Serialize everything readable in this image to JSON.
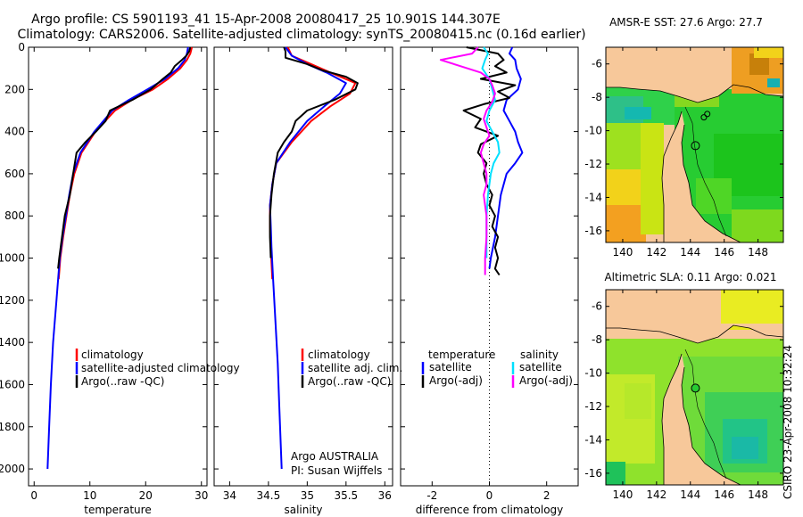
{
  "header": {
    "line1": "Argo profile: CS 5901193_41 15-Apr-2008 20080417_25 10.901S 144.307E",
    "line2": "Climatology: CARS2006. Satellite-adjusted climatology: synTS_20080415.nc (0.16d earlier)"
  },
  "colors": {
    "climatology": "#ff0000",
    "satellite": "#0000ff",
    "argo": "#000000",
    "sal_satellite": "#00e0ff",
    "sal_argo": "#ff00ff",
    "land": "#f7c89a"
  },
  "stamp": "CSIRO 23-Apr-2008 10:32:24",
  "chart_data": [
    {
      "id": "temperature-profile",
      "type": "line",
      "xlabel": "temperature",
      "ylabel": "",
      "xlim": [
        -1,
        31
      ],
      "ylim": [
        0,
        2080
      ],
      "yreversed": true,
      "xticks": [
        0,
        10,
        20,
        30
      ],
      "yticks": [
        0,
        200,
        400,
        600,
        800,
        1000,
        1200,
        1400,
        1600,
        1800,
        2000
      ],
      "legend": [
        "climatology",
        "satellite-adjusted climatology",
        "Argo(..raw -QC)"
      ],
      "series": [
        {
          "name": "climatology",
          "color": "#ff0000",
          "depth": [
            0,
            30,
            60,
            100,
            150,
            200,
            250,
            300,
            400,
            500,
            600,
            700,
            800,
            900,
            1000,
            1100
          ],
          "values": [
            28.3,
            28.0,
            27.4,
            26.2,
            24.0,
            21.3,
            17.5,
            14.5,
            11.0,
            8.5,
            7.2,
            6.4,
            5.8,
            5.2,
            4.7,
            4.4
          ]
        },
        {
          "name": "satellite-adjusted climatology",
          "color": "#0000ff",
          "depth": [
            0,
            30,
            60,
            100,
            150,
            200,
            250,
            300,
            400,
            500,
            600,
            700,
            800,
            900,
            1000,
            1200,
            1400,
            1600,
            1800,
            2000
          ],
          "values": [
            27.6,
            27.4,
            27.0,
            25.8,
            23.5,
            20.3,
            17.0,
            14.0,
            10.8,
            8.3,
            7.0,
            6.3,
            5.7,
            5.1,
            4.6,
            4.0,
            3.4,
            3.0,
            2.7,
            2.4
          ]
        },
        {
          "name": "Argo(..raw -QC)",
          "color": "#000000",
          "depth": [
            0,
            20,
            40,
            60,
            90,
            120,
            150,
            200,
            250,
            300,
            350,
            400,
            450,
            500,
            600,
            700,
            800,
            900,
            1000,
            1050
          ],
          "values": [
            28.0,
            27.8,
            27.3,
            26.5,
            25.2,
            24.5,
            23.1,
            20.9,
            17.6,
            13.6,
            12.8,
            11.1,
            9.2,
            7.6,
            7.0,
            6.4,
            5.5,
            5.0,
            4.5,
            4.3
          ]
        }
      ]
    },
    {
      "id": "salinity-profile",
      "type": "line",
      "xlabel": "salinity",
      "xlim": [
        33.8,
        36.1
      ],
      "ylim": [
        0,
        2080
      ],
      "yreversed": true,
      "xticks": [
        34,
        34.5,
        35,
        35.5,
        36
      ],
      "legend": [
        "climatology",
        "satellite adj. clim.",
        "Argo(..raw -QC)"
      ],
      "annotation": [
        "Argo AUSTRALIA",
        "PI: Susan Wijffels"
      ],
      "series": [
        {
          "name": "climatology",
          "color": "#ff0000",
          "depth": [
            0,
            40,
            80,
            120,
            170,
            220,
            280,
            350,
            450,
            550,
            650,
            750,
            850,
            950,
            1100
          ],
          "values": [
            34.75,
            34.8,
            35.05,
            35.3,
            35.62,
            35.55,
            35.3,
            35.05,
            34.8,
            34.6,
            34.55,
            34.52,
            34.52,
            34.53,
            34.55
          ]
        },
        {
          "name": "satellite adj. clim.",
          "color": "#0000ff",
          "depth": [
            0,
            40,
            80,
            120,
            170,
            220,
            280,
            350,
            450,
            550,
            650,
            750,
            850,
            950,
            1100,
            1300,
            1500,
            1700,
            1900,
            2000
          ],
          "values": [
            34.72,
            34.8,
            35.0,
            35.25,
            35.5,
            35.42,
            35.22,
            35.0,
            34.78,
            34.6,
            34.55,
            34.52,
            34.53,
            34.54,
            34.56,
            34.59,
            34.62,
            34.64,
            34.66,
            34.67
          ]
        },
        {
          "name": "Argo(..raw -QC)",
          "color": "#000000",
          "depth": [
            0,
            20,
            50,
            80,
            110,
            140,
            170,
            200,
            250,
            300,
            350,
            400,
            450,
            500,
            600,
            700,
            800,
            900,
            1000
          ],
          "values": [
            34.7,
            34.72,
            34.72,
            35.0,
            35.2,
            35.5,
            35.65,
            35.62,
            35.35,
            35.0,
            34.85,
            34.8,
            34.7,
            34.62,
            34.57,
            34.54,
            34.52,
            34.52,
            34.53
          ]
        }
      ]
    },
    {
      "id": "difference-profile",
      "type": "line",
      "xlabel": "difference from climatology",
      "xlim": [
        -3.1,
        3.1
      ],
      "ylim": [
        0,
        2080
      ],
      "yreversed": true,
      "xticks": [
        -2,
        0,
        2
      ],
      "zero_line": true,
      "legend_titles": [
        "temperature",
        "salinity"
      ],
      "legend": [
        "satellite",
        "Argo(-adj)",
        "satellite",
        "Argo(-adj)"
      ],
      "series": [
        {
          "name": "temperature satellite",
          "color": "#0000ff",
          "depth": [
            0,
            30,
            60,
            100,
            150,
            200,
            250,
            300,
            350,
            400,
            450,
            500,
            550,
            600,
            700,
            800,
            900,
            1000,
            1050
          ],
          "values": [
            0.8,
            0.7,
            0.9,
            0.95,
            1.1,
            1.0,
            0.6,
            0.5,
            0.7,
            0.9,
            1.0,
            1.15,
            0.9,
            0.6,
            0.4,
            0.3,
            0.2,
            0.05,
            0.0
          ]
        },
        {
          "name": "temperature Argo(-adj)",
          "color": "#000000",
          "depth": [
            0,
            30,
            60,
            90,
            120,
            150,
            180,
            210,
            240,
            270,
            300,
            340,
            380,
            420,
            460,
            500,
            550,
            600,
            650,
            700,
            750,
            800,
            850,
            900,
            950,
            1000,
            1050,
            1080
          ],
          "values": [
            -0.8,
            0.3,
            0.5,
            0.2,
            0.6,
            -0.3,
            0.9,
            0.3,
            0.7,
            -0.2,
            -0.9,
            -0.3,
            -0.5,
            0.3,
            -0.3,
            -0.4,
            -0.1,
            -0.2,
            -0.1,
            0.1,
            0.0,
            0.2,
            0.1,
            0.3,
            0.2,
            0.3,
            0.2,
            0.35
          ]
        },
        {
          "name": "salinity satellite",
          "color": "#00e0ff",
          "depth": [
            0,
            30,
            60,
            100,
            150,
            200,
            250,
            300,
            350,
            400,
            450,
            500,
            550,
            600,
            700,
            800,
            900,
            1000
          ],
          "values": [
            -0.2,
            -0.05,
            -0.15,
            -0.25,
            0.0,
            0.1,
            0.2,
            0.0,
            -0.1,
            0.1,
            0.3,
            0.35,
            0.15,
            0.05,
            -0.05,
            -0.1,
            -0.1,
            -0.1
          ]
        },
        {
          "name": "salinity Argo(-adj)",
          "color": "#ff00ff",
          "depth": [
            0,
            30,
            60,
            90,
            120,
            150,
            180,
            220,
            260,
            300,
            340,
            380,
            420,
            460,
            500,
            550,
            600,
            650,
            700,
            800,
            900,
            1000,
            1080
          ],
          "values": [
            -0.4,
            -0.6,
            -1.7,
            -1.0,
            -0.3,
            0.0,
            0.1,
            0.2,
            0.1,
            -0.1,
            -0.2,
            -0.1,
            0.0,
            -0.2,
            -0.3,
            -0.2,
            -0.1,
            -0.1,
            -0.2,
            -0.1,
            -0.1,
            -0.15,
            -0.15
          ]
        }
      ]
    },
    {
      "id": "sst-map",
      "type": "heatmap",
      "title": "AMSR-E SST: 27.6 Argo: 27.7",
      "xlim": [
        139.0,
        149.5
      ],
      "ylim": [
        -16.7,
        -5.0
      ],
      "xticks": [
        140,
        142,
        144,
        146,
        148
      ],
      "yticks": [
        -6,
        -8,
        -10,
        -12,
        -14,
        -16
      ],
      "float_track_lon": [
        145.0,
        144.8,
        144.3
      ],
      "float_track_lat": [
        -9.0,
        -9.2,
        -10.9
      ]
    },
    {
      "id": "sla-map",
      "type": "heatmap",
      "title": "Altimetric SLA: 0.11 Argo: 0.021",
      "xlim": [
        139.0,
        149.5
      ],
      "ylim": [
        -16.7,
        -5.0
      ],
      "xticks": [
        140,
        142,
        144,
        146,
        148
      ],
      "yticks": [
        -6,
        -8,
        -10,
        -12,
        -14,
        -16
      ],
      "float_track_lon": [
        144.3
      ],
      "float_track_lat": [
        -10.9
      ]
    }
  ]
}
